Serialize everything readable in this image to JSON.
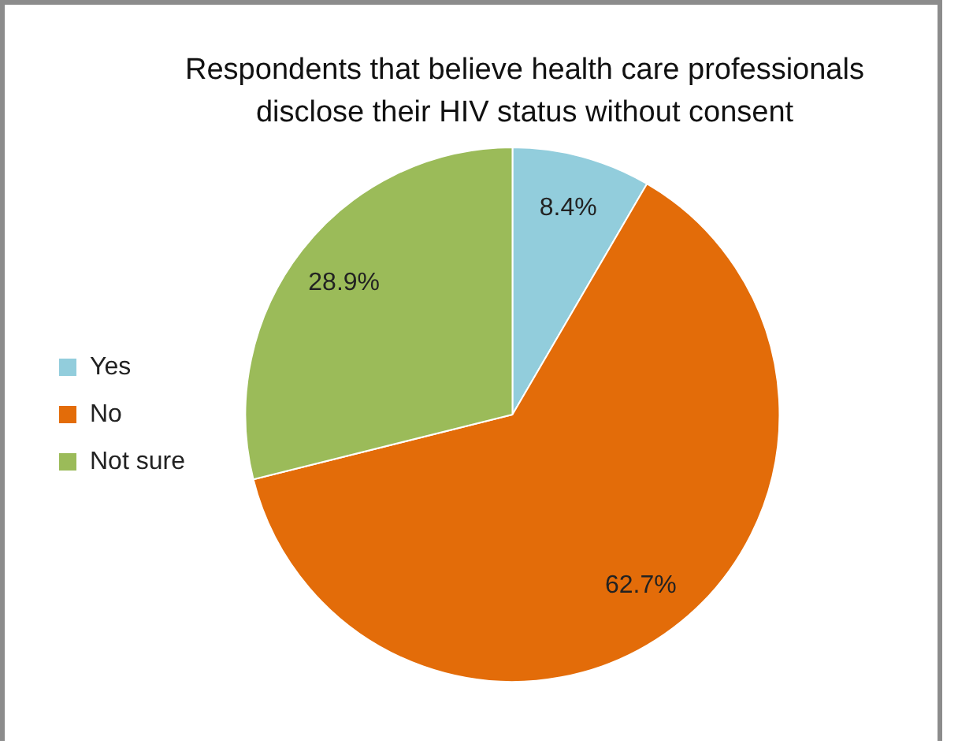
{
  "chart_data": {
    "type": "pie",
    "title": "Respondents that believe health care professionals disclose their HIV status without consent",
    "categories": [
      "Yes",
      "No",
      "Not sure"
    ],
    "values": [
      8.4,
      62.7,
      28.9
    ],
    "colors": [
      "#92cddc",
      "#e36c09",
      "#9bbb59"
    ],
    "value_labels": [
      "8.4%",
      "62.7%",
      "28.9%"
    ],
    "legend": "left"
  }
}
